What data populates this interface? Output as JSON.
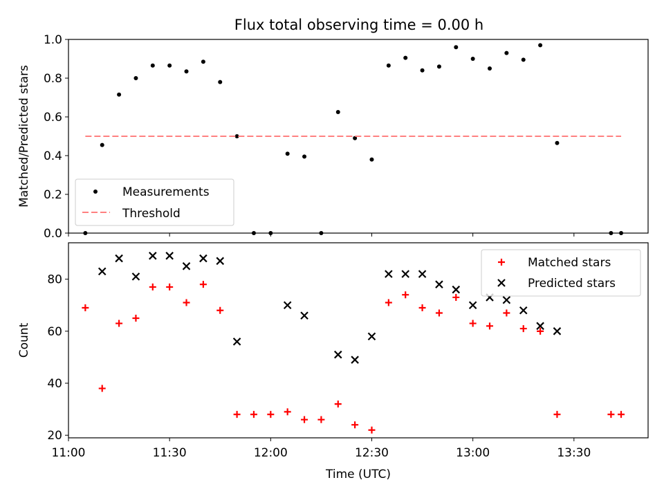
{
  "title": "Flux total observing time = 0.00 h",
  "colors": {
    "measurements": "#000000",
    "threshold": "#ff8080",
    "matched": "#ff0000",
    "predicted": "#000000"
  },
  "chart_data": [
    {
      "type": "scatter",
      "title": "Flux total observing time = 0.00 h",
      "xlabel": "",
      "ylabel": "Matched/Predicted stars",
      "xlim": [
        "11:00",
        "13:52"
      ],
      "ylim": [
        0,
        1.0
      ],
      "yticks": [
        "0.0",
        "0.2",
        "0.4",
        "0.6",
        "0.8",
        "1.0"
      ],
      "grid": false,
      "legend_position": "lower-left",
      "series": [
        {
          "name": "Measurements",
          "marker": "dot",
          "x": [
            "11:05",
            "11:10",
            "11:15",
            "11:20",
            "11:25",
            "11:30",
            "11:35",
            "11:40",
            "11:45",
            "11:50",
            "11:55",
            "12:00",
            "12:05",
            "12:10",
            "12:15",
            "12:20",
            "12:25",
            "12:30",
            "12:35",
            "12:40",
            "12:45",
            "12:50",
            "12:55",
            "13:00",
            "13:05",
            "13:10",
            "13:15",
            "13:20",
            "13:25",
            "13:41",
            "13:44"
          ],
          "y": [
            0.0,
            0.455,
            0.715,
            0.8,
            0.865,
            0.865,
            0.835,
            0.885,
            0.78,
            0.5,
            0.0,
            0.0,
            0.41,
            0.395,
            0.0,
            0.625,
            0.49,
            0.38,
            0.865,
            0.905,
            0.84,
            0.86,
            0.96,
            0.9,
            0.85,
            0.93,
            0.895,
            0.97,
            0.465,
            0.0,
            0.0
          ]
        },
        {
          "name": "Threshold",
          "marker": "dashed-line",
          "x": [
            "11:05",
            "13:44"
          ],
          "y": [
            0.5,
            0.5
          ]
        }
      ]
    },
    {
      "type": "scatter",
      "xlabel": "Time (UTC)",
      "ylabel": "Count",
      "xlim": [
        "11:00",
        "13:52"
      ],
      "ylim": [
        19,
        94
      ],
      "xticks": [
        "11:00",
        "11:30",
        "12:00",
        "12:30",
        "13:00",
        "13:30"
      ],
      "yticks": [
        "20",
        "40",
        "60",
        "80"
      ],
      "grid": false,
      "legend_position": "top-right",
      "series": [
        {
          "name": "Matched stars",
          "marker": "plus",
          "x": [
            "11:05",
            "11:10",
            "11:15",
            "11:20",
            "11:25",
            "11:30",
            "11:35",
            "11:40",
            "11:45",
            "11:50",
            "11:55",
            "12:00",
            "12:05",
            "12:10",
            "12:15",
            "12:20",
            "12:25",
            "12:30",
            "12:35",
            "12:40",
            "12:45",
            "12:50",
            "12:55",
            "13:00",
            "13:05",
            "13:10",
            "13:15",
            "13:20",
            "13:25",
            "13:41",
            "13:44"
          ],
          "y": [
            69,
            38,
            63,
            65,
            77,
            77,
            71,
            78,
            68,
            28,
            28,
            28,
            29,
            26,
            26,
            32,
            24,
            22,
            71,
            74,
            69,
            67,
            73,
            63,
            62,
            67,
            61,
            60,
            28,
            28,
            28
          ]
        },
        {
          "name": "Predicted stars",
          "marker": "x",
          "x": [
            "11:10",
            "11:15",
            "11:20",
            "11:25",
            "11:30",
            "11:35",
            "11:40",
            "11:45",
            "11:50",
            "12:05",
            "12:10",
            "12:20",
            "12:25",
            "12:30",
            "12:35",
            "12:40",
            "12:45",
            "12:50",
            "12:55",
            "13:00",
            "13:05",
            "13:10",
            "13:15",
            "13:20",
            "13:25"
          ],
          "y": [
            83,
            88,
            81,
            89,
            89,
            85,
            88,
            87,
            56,
            70,
            66,
            51,
            49,
            58,
            82,
            82,
            82,
            78,
            76,
            70,
            73,
            72,
            68,
            62,
            60
          ]
        }
      ]
    }
  ]
}
